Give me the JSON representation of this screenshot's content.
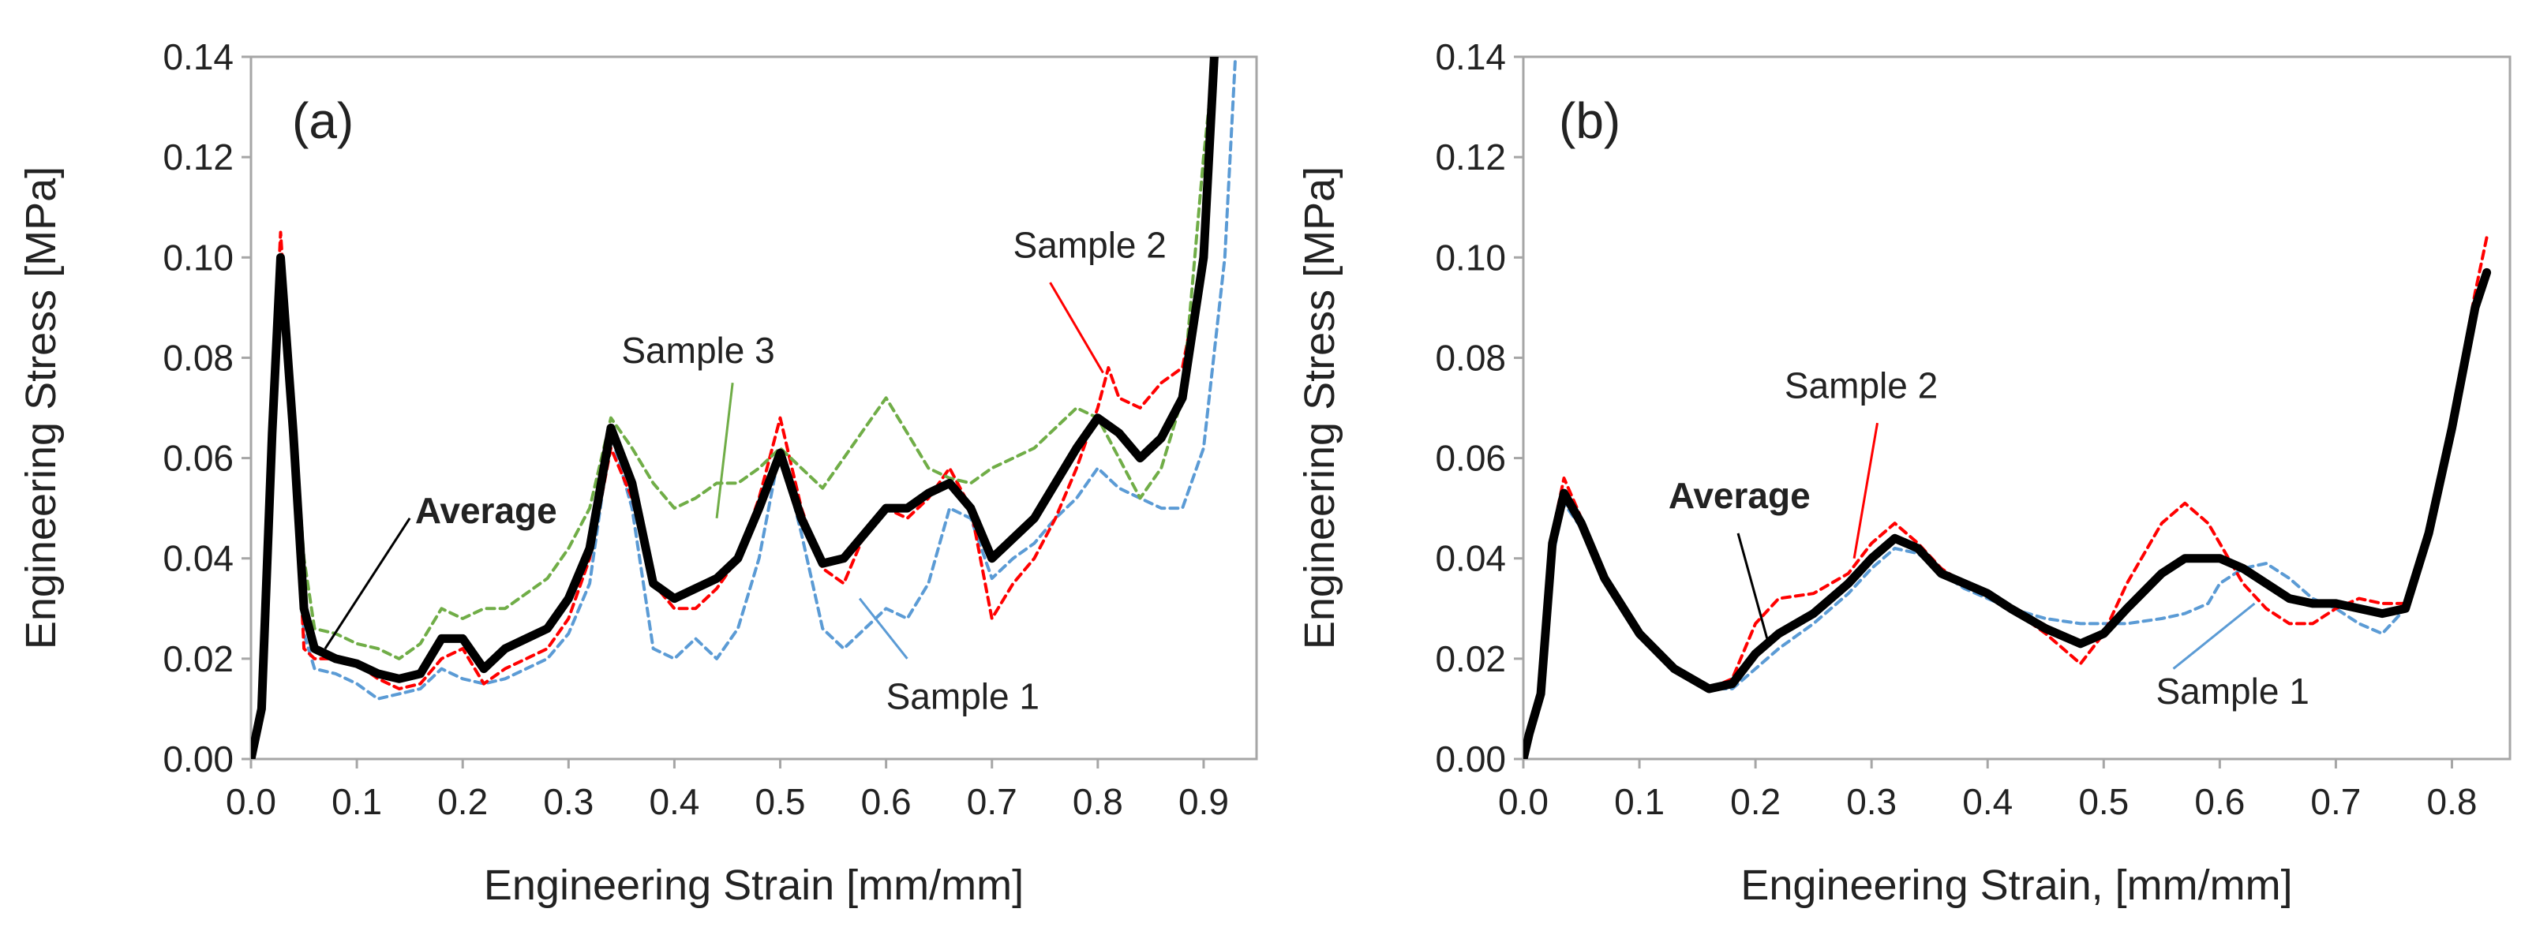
{
  "colors": {
    "average": "#000000",
    "sample1": "#5B9BD5",
    "sample2": "#FF0000",
    "sample3": "#70AD47",
    "axis": "#A6A6A6"
  },
  "chart_data": [
    {
      "type": "line",
      "panel_label": "(a)",
      "xlabel": "Engineering Strain [mm/mm]",
      "ylabel": "Engineering Stress [MPa]",
      "xlim": [
        0,
        0.95
      ],
      "ylim": [
        0,
        0.14
      ],
      "xticks": [
        0.0,
        0.1,
        0.2,
        0.3,
        0.4,
        0.5,
        0.6,
        0.7,
        0.8,
        0.9
      ],
      "xtick_labels": [
        "0.0",
        "0.1",
        "0.2",
        "0.3",
        "0.4",
        "0.5",
        "0.6",
        "0.7",
        "0.8",
        "0.9"
      ],
      "yticks": [
        0.0,
        0.02,
        0.04,
        0.06,
        0.08,
        0.1,
        0.12,
        0.14
      ],
      "ytick_labels": [
        "0.00",
        "0.02",
        "0.04",
        "0.06",
        "0.08",
        "0.10",
        "0.12",
        "0.14"
      ],
      "series": [
        {
          "name": "Sample 1",
          "color_key": "sample1",
          "dashed": true,
          "x": [
            0,
            0.01,
            0.02,
            0.028,
            0.04,
            0.05,
            0.06,
            0.08,
            0.1,
            0.12,
            0.14,
            0.16,
            0.18,
            0.2,
            0.22,
            0.24,
            0.26,
            0.28,
            0.3,
            0.32,
            0.34,
            0.36,
            0.38,
            0.4,
            0.42,
            0.44,
            0.46,
            0.48,
            0.5,
            0.52,
            0.54,
            0.56,
            0.58,
            0.6,
            0.62,
            0.64,
            0.66,
            0.68,
            0.7,
            0.72,
            0.74,
            0.76,
            0.78,
            0.8,
            0.82,
            0.84,
            0.86,
            0.88,
            0.9,
            0.92,
            0.93
          ],
          "y": [
            0,
            0.01,
            0.06,
            0.095,
            0.06,
            0.025,
            0.018,
            0.017,
            0.015,
            0.012,
            0.013,
            0.014,
            0.018,
            0.016,
            0.015,
            0.016,
            0.018,
            0.02,
            0.025,
            0.035,
            0.065,
            0.05,
            0.022,
            0.02,
            0.024,
            0.02,
            0.026,
            0.04,
            0.062,
            0.045,
            0.026,
            0.022,
            0.026,
            0.03,
            0.028,
            0.035,
            0.05,
            0.048,
            0.036,
            0.04,
            0.043,
            0.048,
            0.052,
            0.058,
            0.054,
            0.052,
            0.05,
            0.05,
            0.062,
            0.1,
            0.14
          ]
        },
        {
          "name": "Sample 2",
          "color_key": "sample2",
          "dashed": true,
          "x": [
            0,
            0.01,
            0.02,
            0.028,
            0.04,
            0.05,
            0.06,
            0.08,
            0.1,
            0.12,
            0.14,
            0.16,
            0.18,
            0.2,
            0.22,
            0.24,
            0.26,
            0.28,
            0.3,
            0.32,
            0.34,
            0.36,
            0.38,
            0.4,
            0.42,
            0.44,
            0.46,
            0.48,
            0.5,
            0.52,
            0.54,
            0.56,
            0.58,
            0.6,
            0.62,
            0.64,
            0.66,
            0.68,
            0.7,
            0.72,
            0.74,
            0.76,
            0.78,
            0.8,
            0.81,
            0.82,
            0.84,
            0.86,
            0.88,
            0.9,
            0.91
          ],
          "y": [
            0,
            0.012,
            0.07,
            0.105,
            0.065,
            0.022,
            0.02,
            0.02,
            0.019,
            0.016,
            0.014,
            0.015,
            0.02,
            0.022,
            0.015,
            0.018,
            0.02,
            0.022,
            0.028,
            0.04,
            0.062,
            0.052,
            0.035,
            0.03,
            0.03,
            0.034,
            0.04,
            0.052,
            0.068,
            0.05,
            0.038,
            0.035,
            0.045,
            0.05,
            0.048,
            0.052,
            0.058,
            0.05,
            0.028,
            0.035,
            0.04,
            0.048,
            0.058,
            0.07,
            0.078,
            0.072,
            0.07,
            0.075,
            0.078,
            0.1,
            0.14
          ]
        },
        {
          "name": "Sample 3",
          "color_key": "sample3",
          "dashed": true,
          "x": [
            0,
            0.01,
            0.02,
            0.028,
            0.04,
            0.05,
            0.06,
            0.08,
            0.1,
            0.12,
            0.14,
            0.16,
            0.18,
            0.2,
            0.22,
            0.24,
            0.26,
            0.28,
            0.3,
            0.32,
            0.34,
            0.36,
            0.38,
            0.4,
            0.42,
            0.44,
            0.46,
            0.48,
            0.5,
            0.52,
            0.54,
            0.56,
            0.58,
            0.6,
            0.62,
            0.64,
            0.66,
            0.68,
            0.7,
            0.72,
            0.74,
            0.76,
            0.78,
            0.8,
            0.82,
            0.84,
            0.86,
            0.88,
            0.9,
            0.91
          ],
          "y": [
            0,
            0.01,
            0.065,
            0.095,
            0.07,
            0.04,
            0.026,
            0.025,
            0.023,
            0.022,
            0.02,
            0.023,
            0.03,
            0.028,
            0.03,
            0.03,
            0.033,
            0.036,
            0.042,
            0.05,
            0.068,
            0.062,
            0.055,
            0.05,
            0.052,
            0.055,
            0.055,
            0.058,
            0.062,
            0.058,
            0.054,
            0.06,
            0.066,
            0.072,
            0.065,
            0.058,
            0.056,
            0.055,
            0.058,
            0.06,
            0.062,
            0.066,
            0.07,
            0.068,
            0.06,
            0.052,
            0.058,
            0.072,
            0.12,
            0.14
          ]
        },
        {
          "name": "Average",
          "color_key": "average",
          "dashed": false,
          "x": [
            0,
            0.01,
            0.02,
            0.028,
            0.04,
            0.05,
            0.06,
            0.08,
            0.1,
            0.12,
            0.14,
            0.16,
            0.18,
            0.2,
            0.22,
            0.24,
            0.26,
            0.28,
            0.3,
            0.32,
            0.34,
            0.36,
            0.38,
            0.4,
            0.42,
            0.44,
            0.46,
            0.48,
            0.5,
            0.52,
            0.54,
            0.56,
            0.58,
            0.6,
            0.62,
            0.64,
            0.66,
            0.68,
            0.7,
            0.72,
            0.74,
            0.76,
            0.78,
            0.8,
            0.82,
            0.84,
            0.86,
            0.88,
            0.9,
            0.91
          ],
          "y": [
            0,
            0.01,
            0.065,
            0.1,
            0.065,
            0.03,
            0.022,
            0.02,
            0.019,
            0.017,
            0.016,
            0.017,
            0.024,
            0.024,
            0.018,
            0.022,
            0.024,
            0.026,
            0.032,
            0.042,
            0.066,
            0.055,
            0.035,
            0.032,
            0.034,
            0.036,
            0.04,
            0.05,
            0.061,
            0.048,
            0.039,
            0.04,
            0.045,
            0.05,
            0.05,
            0.053,
            0.055,
            0.05,
            0.04,
            0.044,
            0.048,
            0.055,
            0.062,
            0.068,
            0.065,
            0.06,
            0.064,
            0.072,
            0.1,
            0.14
          ]
        }
      ],
      "annotations": [
        {
          "text": "Sample 3",
          "color_key": "sample3",
          "bold": false,
          "at": [
            0.35,
            0.079
          ],
          "anchor": "start",
          "arrow_from": [
            0.455,
            0.075
          ],
          "arrow_to": [
            0.44,
            0.048
          ]
        },
        {
          "text": "Sample 2",
          "color_key": "sample2",
          "bold": false,
          "at": [
            0.72,
            0.1
          ],
          "anchor": "start",
          "arrow_from": [
            0.755,
            0.095
          ],
          "arrow_to": [
            0.805,
            0.077
          ]
        },
        {
          "text": "Average",
          "color_key": "average",
          "bold": true,
          "at": [
            0.155,
            0.047
          ],
          "anchor": "start",
          "arrow_from": [
            0.15,
            0.048
          ],
          "arrow_to": [
            0.07,
            0.022
          ]
        },
        {
          "text": "Sample 1",
          "color_key": "sample1",
          "bold": false,
          "at": [
            0.6,
            0.01
          ],
          "anchor": "start",
          "arrow_from": [
            0.62,
            0.02
          ],
          "arrow_to": [
            0.575,
            0.032
          ]
        }
      ]
    },
    {
      "type": "line",
      "panel_label": "(b)",
      "xlabel": "Engineering Strain, [mm/mm]",
      "ylabel": "Engineering Stress [MPa]",
      "xlim": [
        0,
        0.85
      ],
      "ylim": [
        0,
        0.14
      ],
      "xticks": [
        0.0,
        0.1,
        0.2,
        0.3,
        0.4,
        0.5,
        0.6,
        0.7,
        0.8
      ],
      "xtick_labels": [
        "0.0",
        "0.1",
        "0.2",
        "0.3",
        "0.4",
        "0.5",
        "0.6",
        "0.7",
        "0.8"
      ],
      "yticks": [
        0.0,
        0.02,
        0.04,
        0.06,
        0.08,
        0.1,
        0.12,
        0.14
      ],
      "ytick_labels": [
        "0.00",
        "0.02",
        "0.04",
        "0.06",
        "0.08",
        "0.10",
        "0.12",
        "0.14"
      ],
      "series": [
        {
          "name": "Sample 1",
          "color_key": "sample1",
          "dashed": true,
          "x": [
            0,
            0.005,
            0.015,
            0.025,
            0.035,
            0.05,
            0.07,
            0.1,
            0.13,
            0.16,
            0.18,
            0.2,
            0.22,
            0.25,
            0.28,
            0.3,
            0.32,
            0.34,
            0.36,
            0.38,
            0.4,
            0.42,
            0.45,
            0.48,
            0.5,
            0.52,
            0.55,
            0.57,
            0.59,
            0.6,
            0.62,
            0.64,
            0.66,
            0.68,
            0.7,
            0.72,
            0.74,
            0.76,
            0.78,
            0.8,
            0.82,
            0.83
          ],
          "y": [
            0,
            0.005,
            0.012,
            0.04,
            0.051,
            0.046,
            0.036,
            0.025,
            0.018,
            0.014,
            0.014,
            0.018,
            0.022,
            0.027,
            0.033,
            0.038,
            0.042,
            0.041,
            0.037,
            0.034,
            0.032,
            0.03,
            0.028,
            0.027,
            0.027,
            0.027,
            0.028,
            0.029,
            0.031,
            0.035,
            0.038,
            0.039,
            0.036,
            0.032,
            0.03,
            0.027,
            0.025,
            0.03,
            0.045,
            0.065,
            0.088,
            0.097
          ]
        },
        {
          "name": "Sample 2",
          "color_key": "sample2",
          "dashed": true,
          "x": [
            0,
            0.005,
            0.015,
            0.025,
            0.035,
            0.05,
            0.07,
            0.1,
            0.13,
            0.16,
            0.18,
            0.2,
            0.22,
            0.25,
            0.28,
            0.3,
            0.32,
            0.34,
            0.36,
            0.38,
            0.4,
            0.42,
            0.45,
            0.48,
            0.5,
            0.52,
            0.55,
            0.57,
            0.59,
            0.6,
            0.62,
            0.64,
            0.66,
            0.68,
            0.7,
            0.72,
            0.74,
            0.76,
            0.78,
            0.8,
            0.82,
            0.83
          ],
          "y": [
            0,
            0.006,
            0.014,
            0.045,
            0.056,
            0.048,
            0.036,
            0.025,
            0.018,
            0.014,
            0.016,
            0.027,
            0.032,
            0.033,
            0.037,
            0.043,
            0.047,
            0.043,
            0.038,
            0.035,
            0.033,
            0.03,
            0.025,
            0.019,
            0.025,
            0.035,
            0.047,
            0.051,
            0.047,
            0.043,
            0.035,
            0.03,
            0.027,
            0.027,
            0.03,
            0.032,
            0.031,
            0.031,
            0.045,
            0.068,
            0.093,
            0.104
          ]
        },
        {
          "name": "Average",
          "color_key": "average",
          "dashed": false,
          "x": [
            0,
            0.005,
            0.015,
            0.025,
            0.035,
            0.05,
            0.07,
            0.1,
            0.13,
            0.16,
            0.18,
            0.2,
            0.22,
            0.25,
            0.28,
            0.3,
            0.32,
            0.34,
            0.36,
            0.38,
            0.4,
            0.42,
            0.45,
            0.48,
            0.5,
            0.52,
            0.55,
            0.57,
            0.59,
            0.6,
            0.62,
            0.64,
            0.66,
            0.68,
            0.7,
            0.72,
            0.74,
            0.76,
            0.78,
            0.8,
            0.82,
            0.83
          ],
          "y": [
            0,
            0.005,
            0.013,
            0.043,
            0.053,
            0.047,
            0.036,
            0.025,
            0.018,
            0.014,
            0.015,
            0.021,
            0.025,
            0.029,
            0.035,
            0.04,
            0.044,
            0.042,
            0.037,
            0.035,
            0.033,
            0.03,
            0.026,
            0.023,
            0.025,
            0.03,
            0.037,
            0.04,
            0.04,
            0.04,
            0.038,
            0.035,
            0.032,
            0.031,
            0.031,
            0.03,
            0.029,
            0.03,
            0.045,
            0.066,
            0.09,
            0.097
          ]
        }
      ],
      "annotations": [
        {
          "text": "Sample 2",
          "color_key": "sample2",
          "bold": false,
          "at": [
            0.225,
            0.072
          ],
          "anchor": "start",
          "arrow_from": [
            0.305,
            0.067
          ],
          "arrow_to": [
            0.285,
            0.04
          ]
        },
        {
          "text": "Average",
          "color_key": "average",
          "bold": true,
          "at": [
            0.125,
            0.05
          ],
          "anchor": "start",
          "arrow_from": [
            0.185,
            0.045
          ],
          "arrow_to": [
            0.21,
            0.024
          ]
        },
        {
          "text": "Sample 1",
          "color_key": "sample1",
          "bold": false,
          "at": [
            0.545,
            0.011
          ],
          "anchor": "start",
          "arrow_from": [
            0.56,
            0.018
          ],
          "arrow_to": [
            0.63,
            0.031
          ]
        }
      ]
    }
  ]
}
